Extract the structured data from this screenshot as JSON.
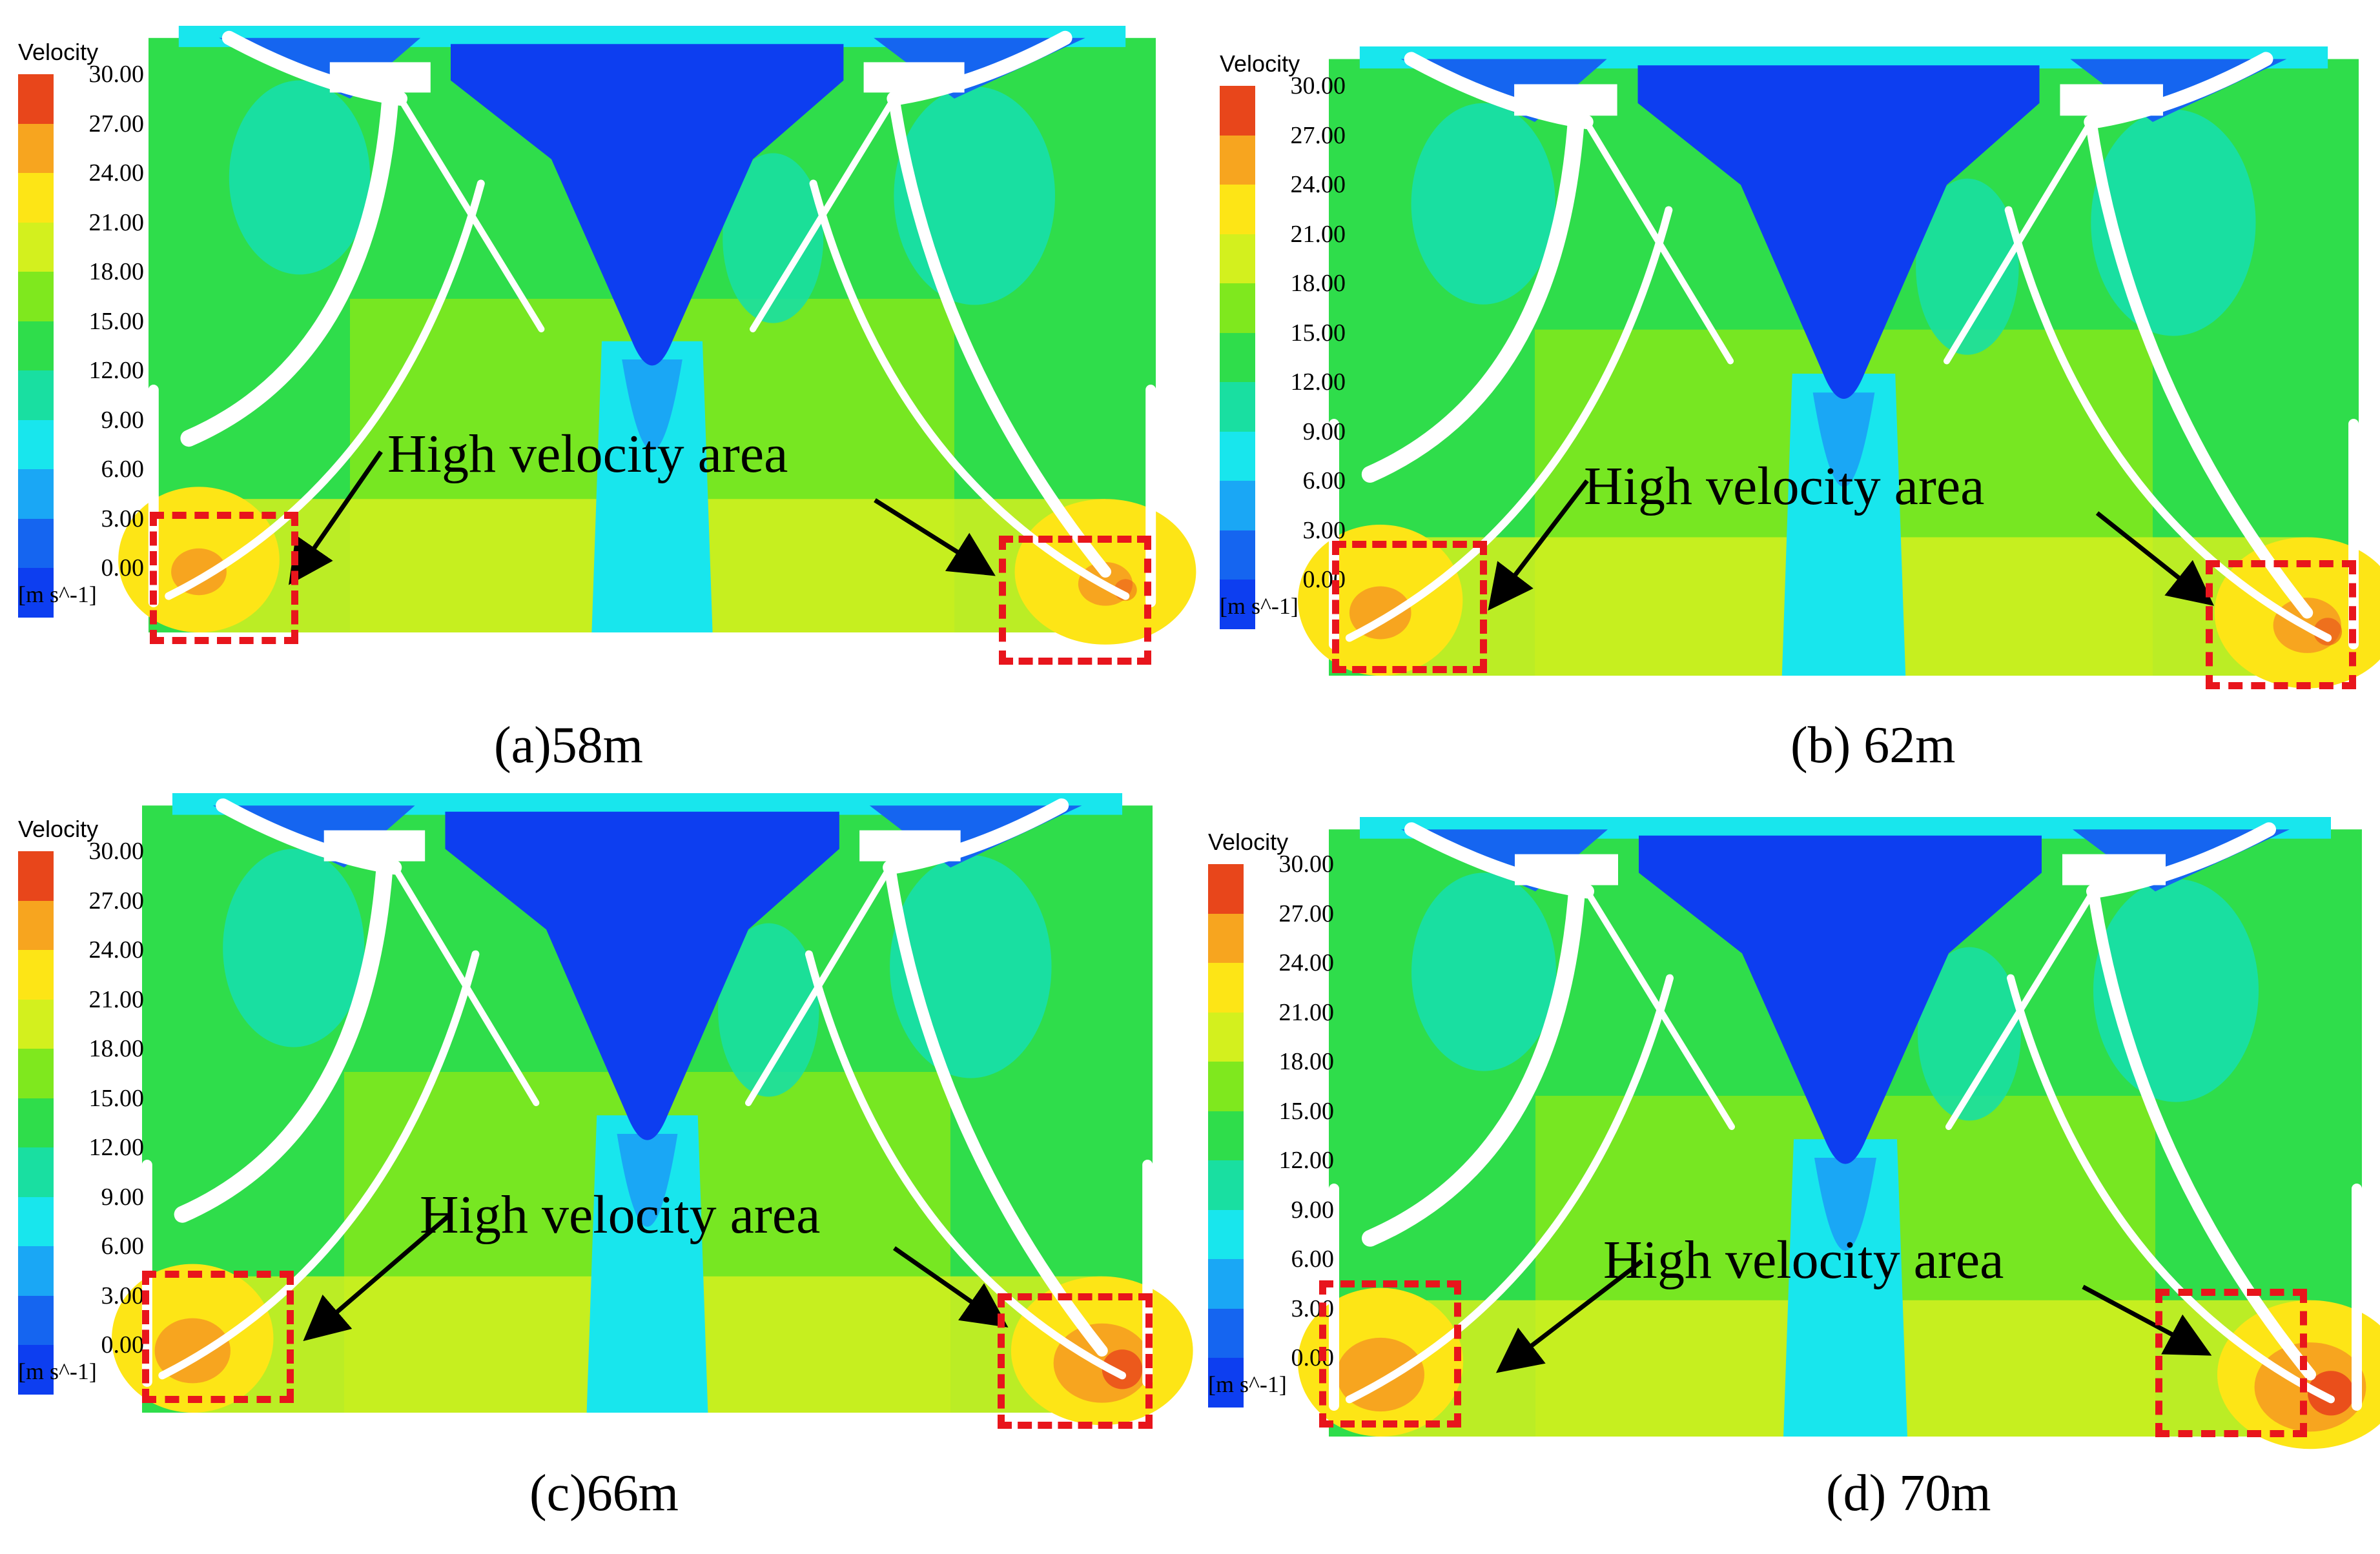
{
  "figure": {
    "legend": {
      "title": "Velocity",
      "units": "[m s^-1]",
      "ticks": [
        "30.00",
        "27.00",
        "24.00",
        "21.00",
        "18.00",
        "15.00",
        "12.00",
        "9.00",
        "6.00",
        "3.00",
        "0.00"
      ],
      "colors": [
        "#e8461b",
        "#f7a51f",
        "#fde516",
        "#d3f01e",
        "#7fe81e",
        "#2fdd4b",
        "#19dfa1",
        "#18e6ed",
        "#1aa7f5",
        "#1565f0",
        "#0d3ef0"
      ]
    },
    "annotation_label": "High velocity area",
    "panels": [
      {
        "caption": "(a)58m",
        "hot_left": 0.55,
        "hot_right": 0.45
      },
      {
        "caption": "(b) 62m",
        "hot_left": 0.6,
        "hot_right": 0.55
      },
      {
        "caption": "(c)66m",
        "hot_left": 0.75,
        "hot_right": 0.8
      },
      {
        "caption": "(d) 70m",
        "hot_left": 0.85,
        "hot_right": 0.9
      }
    ]
  }
}
